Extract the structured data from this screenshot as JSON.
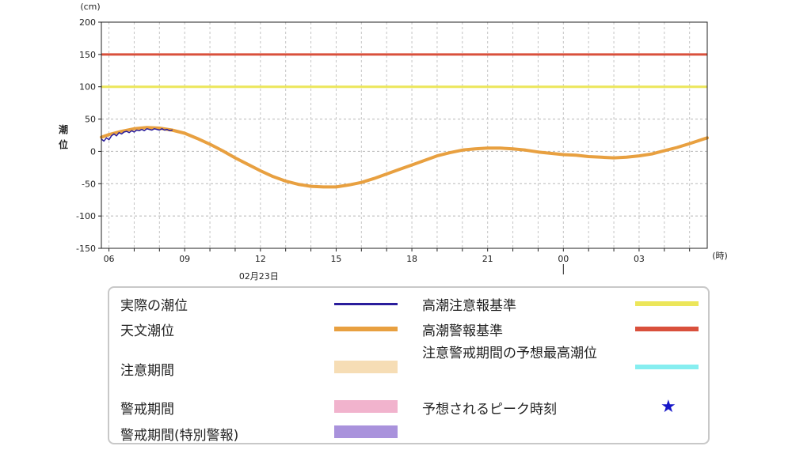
{
  "chart_data": {
    "type": "line",
    "y_unit": "(cm)",
    "x_unit": "(時)",
    "ylabel": "潮位",
    "date_label": "02月23日",
    "ylim": [
      -150,
      200
    ],
    "y_ticks": [
      200,
      150,
      100,
      50,
      0,
      -50,
      -100,
      -150
    ],
    "x_range_hours": [
      5.7,
      29.7
    ],
    "x_ticks": [
      {
        "hour": 6,
        "label": "06"
      },
      {
        "hour": 9,
        "label": "09"
      },
      {
        "hour": 12,
        "label": "12"
      },
      {
        "hour": 15,
        "label": "15"
      },
      {
        "hour": 18,
        "label": "18"
      },
      {
        "hour": 21,
        "label": "21"
      },
      {
        "hour": 24,
        "label": "00"
      },
      {
        "hour": 27,
        "label": "03"
      }
    ],
    "grid": true,
    "series": [
      {
        "name": "天文潮位",
        "color": "#e8a040",
        "x": [
          5.7,
          6.0,
          6.5,
          7.0,
          7.5,
          8.0,
          8.5,
          9.0,
          9.5,
          10.0,
          10.5,
          11.0,
          11.5,
          12.0,
          12.5,
          13.0,
          13.5,
          14.0,
          14.5,
          15.0,
          15.5,
          16.0,
          16.5,
          17.0,
          17.5,
          18.0,
          18.5,
          19.0,
          19.5,
          20.0,
          20.5,
          21.0,
          21.5,
          22.0,
          22.5,
          23.0,
          23.5,
          24.0,
          24.5,
          25.0,
          25.5,
          26.0,
          26.5,
          27.0,
          27.5,
          28.0,
          28.5,
          29.0,
          29.7
        ],
        "y": [
          22,
          26,
          31,
          35,
          37,
          36,
          33,
          28,
          20,
          11,
          1,
          -10,
          -20,
          -30,
          -39,
          -46,
          -51,
          -54,
          -55,
          -55,
          -52,
          -48,
          -42,
          -35,
          -28,
          -21,
          -14,
          -7,
          -2,
          2,
          4,
          5,
          5,
          4,
          2,
          -1,
          -3,
          -5,
          -6,
          -8,
          -9,
          -10,
          -9,
          -7,
          -4,
          1,
          6,
          12,
          21
        ]
      },
      {
        "name": "実際の潮位",
        "color": "#2a1d9c",
        "x": [
          5.7,
          5.8,
          5.9,
          6.0,
          6.1,
          6.2,
          6.3,
          6.4,
          6.5,
          6.6,
          6.7,
          6.8,
          6.9,
          7.0,
          7.1,
          7.2,
          7.3,
          7.4,
          7.5,
          7.6,
          7.7,
          7.8,
          7.9,
          8.0,
          8.1,
          8.2,
          8.3,
          8.4,
          8.5
        ],
        "y": [
          19,
          16,
          21,
          18,
          24,
          27,
          24,
          29,
          27,
          30,
          31,
          29,
          32,
          30,
          33,
          32,
          34,
          32,
          35,
          34,
          33,
          35,
          34,
          33,
          35,
          33,
          34,
          32,
          33
        ]
      }
    ],
    "reference_lines": [
      {
        "name": "高潮注意報基準",
        "value": 100,
        "color": "#ece65a"
      },
      {
        "name": "高潮警報基準",
        "value": 150,
        "color": "#d9503c"
      }
    ]
  },
  "legend": {
    "items": [
      {
        "label": "実際の潮位",
        "color": "#2a1d9c",
        "kind": "line"
      },
      {
        "label": "天文潮位",
        "color": "#e8a040",
        "kind": "line"
      },
      {
        "label": "注意期間",
        "color": "#f6ddb5",
        "kind": "band"
      },
      {
        "label": "警戒期間",
        "color": "#f1b3cd",
        "kind": "band"
      },
      {
        "label": "警戒期間(特別警報)",
        "color": "#a992dc",
        "kind": "band"
      },
      {
        "label": "高潮注意報基準",
        "color": "#ece65a",
        "kind": "line"
      },
      {
        "label": "高潮警報基準",
        "color": "#d9503c",
        "kind": "line"
      },
      {
        "label": "注意警戒期間の予想最高潮位",
        "color": "#86eef0",
        "kind": "line"
      },
      {
        "label": "予想されるピーク時刻",
        "color": "#1616c8",
        "kind": "star",
        "symbol": "★"
      }
    ]
  }
}
